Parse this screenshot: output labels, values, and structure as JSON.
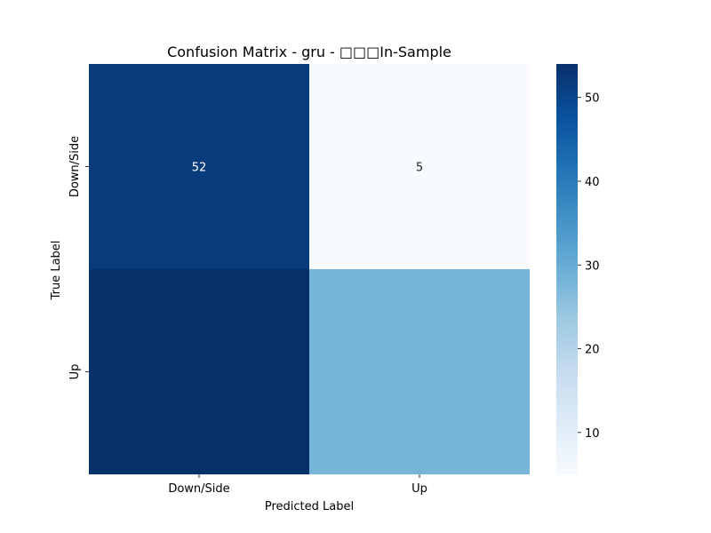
{
  "chart_data": {
    "type": "heatmap",
    "title": "Confusion Matrix - gru - □□□In-Sample",
    "xlabel": "Predicted Label",
    "ylabel": "True Label",
    "x_categories": [
      "Down/Side",
      "Up"
    ],
    "y_categories": [
      "Down/Side",
      "Up"
    ],
    "values": [
      [
        52,
        5
      ],
      [
        54,
        28
      ]
    ],
    "annotations": [
      [
        "52",
        "5"
      ],
      [
        "",
        ""
      ]
    ],
    "colormap": "Blues",
    "colorbar": {
      "vmin": 5,
      "vmax": 54,
      "ticks": [
        10,
        20,
        30,
        40,
        50
      ],
      "tick_labels": [
        "10",
        "20",
        "30",
        "40",
        "50"
      ]
    },
    "grid": false
  }
}
